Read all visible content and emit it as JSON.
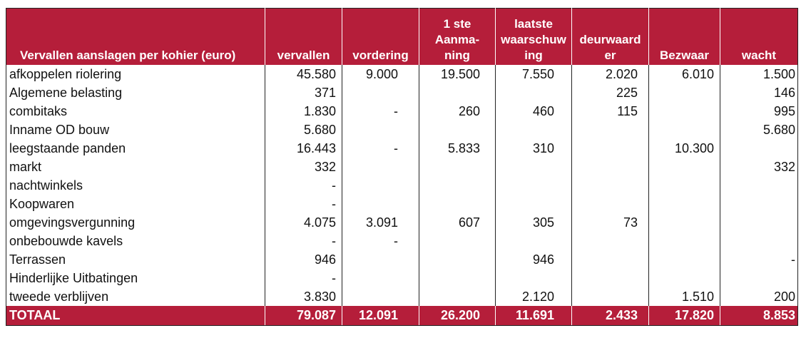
{
  "table": {
    "headers": [
      [
        "Vervallen aanslagen per kohier (euro)"
      ],
      [
        "vervallen"
      ],
      [
        "vordering"
      ],
      [
        "1 ste",
        "Aanma-",
        "ning"
      ],
      [
        "laatste",
        "waarschuw",
        "ing"
      ],
      [
        "deurwaard",
        "er"
      ],
      [
        "Bezwaar"
      ],
      [
        "wacht"
      ]
    ],
    "rows": [
      [
        "afkoppelen riolering",
        "45.580",
        "9.000",
        "19.500",
        "7.550",
        "2.020",
        "6.010",
        "1.500"
      ],
      [
        "Algemene belasting",
        "371",
        "",
        "",
        "",
        "225",
        "",
        "146"
      ],
      [
        "combitaks",
        "1.830",
        "-",
        "260",
        "460",
        "115",
        "",
        "995"
      ],
      [
        "Inname OD bouw",
        "5.680",
        "",
        "",
        "",
        "",
        "",
        "5.680"
      ],
      [
        "leegstaande panden",
        "16.443",
        "-",
        "5.833",
        "310",
        "",
        "10.300",
        ""
      ],
      [
        "markt",
        "332",
        "",
        "",
        "",
        "",
        "",
        "332"
      ],
      [
        "nachtwinkels",
        "-",
        "",
        "",
        "",
        "",
        "",
        ""
      ],
      [
        "Koopwaren",
        "-",
        "",
        "",
        "",
        "",
        "",
        ""
      ],
      [
        "omgevingsvergunning",
        "4.075",
        "3.091",
        "607",
        "305",
        "73",
        "",
        ""
      ],
      [
        "onbebouwde kavels",
        "-",
        "-",
        "",
        "",
        "",
        "",
        ""
      ],
      [
        "Terrassen",
        "946",
        "",
        "",
        "946",
        "",
        "",
        "-"
      ],
      [
        "Hinderlijke Uitbatingen",
        "-",
        "",
        "",
        "",
        "",
        "",
        ""
      ],
      [
        "tweede verblijven",
        "3.830",
        "",
        "",
        "2.120",
        "",
        "1.510",
        "200"
      ]
    ],
    "total": [
      "TOTAAL",
      "79.087",
      "12.091",
      "26.200",
      "11.691",
      "2.433",
      "17.820",
      "8.853"
    ]
  },
  "colors": {
    "header_bg": "#b51e3a",
    "header_text": "#ffffff"
  }
}
